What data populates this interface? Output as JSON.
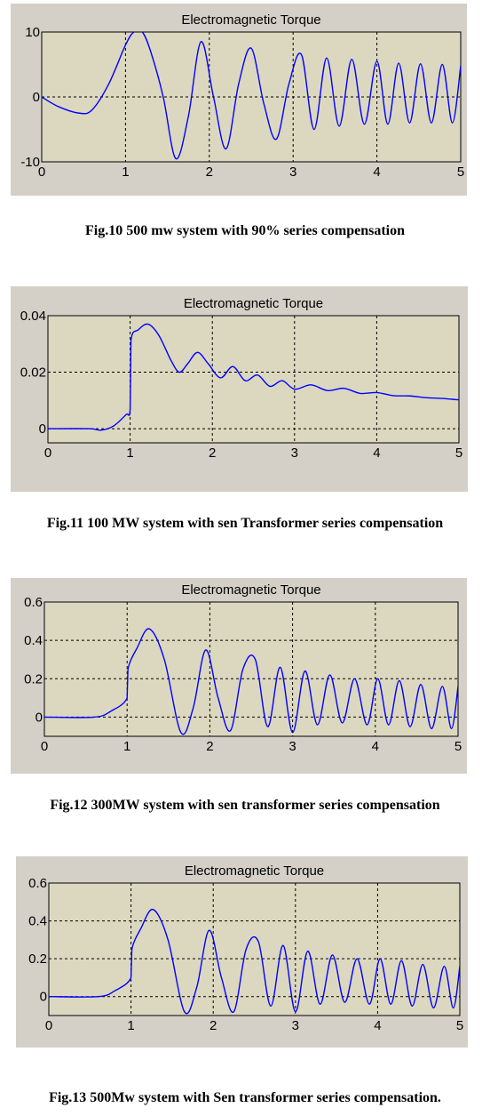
{
  "chart_data": [
    {
      "type": "line",
      "title": "Electromagnetic Torque",
      "xlim": [
        0,
        5
      ],
      "ylim": [
        -10,
        10
      ],
      "x_ticks": [
        "0",
        "1",
        "2",
        "3",
        "4",
        "5"
      ],
      "y_ticks": [
        "-10",
        "0",
        "10"
      ],
      "y_tick_values": [
        -10,
        0,
        10
      ],
      "grid": true,
      "line_color": "#0000ff",
      "plot_bg": "#dcd8c0",
      "series": [
        {
          "x": [
            0,
            0.2,
            0.45,
            0.6,
            0.8,
            1.0,
            1.1,
            1.2,
            1.3,
            1.45,
            1.6,
            1.75,
            1.9,
            2.05,
            2.2,
            2.35,
            2.5,
            2.65,
            2.8,
            2.95,
            3.1,
            3.25,
            3.4,
            3.55,
            3.7,
            3.85,
            4.0,
            4.13,
            4.26,
            4.39,
            4.52,
            4.65,
            4.78,
            4.9,
            5.0
          ],
          "y": [
            0,
            -1.5,
            -2.5,
            -2,
            2,
            8,
            10,
            10,
            7,
            0,
            -9.5,
            -3,
            8.5,
            0,
            -8,
            2,
            7.5,
            -1,
            -6.5,
            2,
            6.5,
            -5,
            6,
            -4.5,
            5.8,
            -4.2,
            5.5,
            -4.2,
            5.2,
            -4,
            5.1,
            -4,
            5,
            -4,
            4.8
          ]
        }
      ],
      "caption": "Fig.10 500 mw system with 90% series compensation"
    },
    {
      "type": "line",
      "title": "Electromagnetic Torque",
      "xlim": [
        0,
        5
      ],
      "ylim": [
        -0.005,
        0.04
      ],
      "x_ticks": [
        "0",
        "1",
        "2",
        "3",
        "4",
        "5"
      ],
      "y_ticks": [
        "0",
        "0.02",
        "0.04"
      ],
      "y_tick_values": [
        0,
        0.02,
        0.04
      ],
      "grid": true,
      "line_color": "#0000ff",
      "plot_bg": "#dcd8c0",
      "series": [
        {
          "x": [
            0,
            0.5,
            0.65,
            0.8,
            0.95,
            1.0,
            1.01,
            1.1,
            1.22,
            1.35,
            1.5,
            1.6,
            1.7,
            1.82,
            1.95,
            2.1,
            2.25,
            2.4,
            2.55,
            2.7,
            2.85,
            3.0,
            3.2,
            3.4,
            3.6,
            3.8,
            4.0,
            4.2,
            4.4,
            4.6,
            4.8,
            5.0
          ],
          "y": [
            0,
            0,
            -0.0005,
            0.001,
            0.005,
            0.007,
            0.031,
            0.035,
            0.037,
            0.033,
            0.024,
            0.02,
            0.023,
            0.027,
            0.023,
            0.018,
            0.022,
            0.017,
            0.019,
            0.015,
            0.017,
            0.014,
            0.0155,
            0.0135,
            0.0143,
            0.0125,
            0.0128,
            0.0117,
            0.0116,
            0.011,
            0.0107,
            0.0102
          ]
        }
      ],
      "caption": "Fig.11 100 MW system with sen Transformer series compensation"
    },
    {
      "type": "line",
      "title": "Electromagnetic Torque",
      "xlim": [
        0,
        5
      ],
      "ylim": [
        -0.1,
        0.6
      ],
      "x_ticks": [
        "0",
        "1",
        "2",
        "3",
        "4",
        "5"
      ],
      "y_ticks": [
        "0",
        "0.2",
        "0.4",
        "0.6"
      ],
      "y_tick_values": [
        0,
        0.2,
        0.4,
        0.6
      ],
      "grid": true,
      "line_color": "#0000ff",
      "plot_bg": "#dcd8c0",
      "series": [
        {
          "x": [
            0,
            0.6,
            0.8,
            1.0,
            1.01,
            1.12,
            1.27,
            1.45,
            1.65,
            1.8,
            1.95,
            2.1,
            2.25,
            2.4,
            2.55,
            2.7,
            2.85,
            3.0,
            3.15,
            3.3,
            3.45,
            3.6,
            3.75,
            3.9,
            4.03,
            4.16,
            4.29,
            4.42,
            4.55,
            4.68,
            4.81,
            4.92,
            5.0
          ],
          "y": [
            0,
            0,
            0.03,
            0.1,
            0.25,
            0.36,
            0.46,
            0.3,
            -0.08,
            0.05,
            0.35,
            0.1,
            -0.07,
            0.25,
            0.3,
            -0.05,
            0.26,
            -0.08,
            0.24,
            -0.04,
            0.22,
            -0.03,
            0.2,
            -0.04,
            0.2,
            -0.04,
            0.19,
            -0.05,
            0.17,
            -0.06,
            0.16,
            -0.06,
            0.16
          ]
        }
      ],
      "caption": "Fig.12 300MW system with sen transformer series compensation"
    },
    {
      "type": "line",
      "title": "Electromagnetic Torque",
      "xlim": [
        0,
        5
      ],
      "ylim": [
        -0.1,
        0.6
      ],
      "x_ticks": [
        "0",
        "1",
        "2",
        "3",
        "4",
        "5"
      ],
      "y_ticks": [
        "0",
        "0.2",
        "0.4",
        "0.6"
      ],
      "y_tick_values": [
        0,
        0.2,
        0.4,
        0.6
      ],
      "grid": true,
      "line_color": "#0000ff",
      "plot_bg": "#dcd8c0",
      "series": [
        {
          "x": [
            0,
            0.6,
            0.8,
            1.0,
            1.01,
            1.12,
            1.27,
            1.45,
            1.65,
            1.8,
            1.95,
            2.1,
            2.25,
            2.4,
            2.55,
            2.7,
            2.85,
            3.0,
            3.15,
            3.3,
            3.45,
            3.6,
            3.75,
            3.9,
            4.03,
            4.16,
            4.29,
            4.42,
            4.55,
            4.68,
            4.81,
            4.92,
            5.0
          ],
          "y": [
            0,
            0,
            0.03,
            0.1,
            0.25,
            0.36,
            0.46,
            0.3,
            -0.08,
            0.05,
            0.35,
            0.1,
            -0.08,
            0.25,
            0.29,
            -0.05,
            0.27,
            -0.08,
            0.24,
            -0.04,
            0.22,
            -0.03,
            0.2,
            -0.04,
            0.2,
            -0.04,
            0.19,
            -0.05,
            0.17,
            -0.06,
            0.16,
            -0.06,
            0.16
          ]
        }
      ],
      "caption": "Fig.13 500Mw system with Sen transformer series compensation."
    }
  ]
}
